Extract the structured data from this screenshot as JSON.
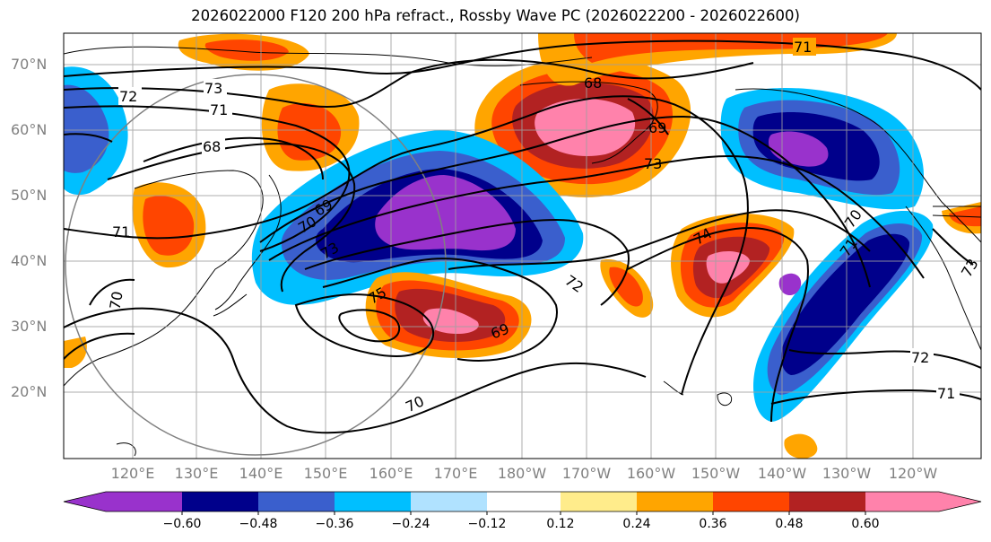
{
  "title": "2026022000 F120 200 hPa refract., Rossby Wave PC (2026022200 - 2026022600)",
  "map": {
    "lat_labels": [
      "70°N",
      "60°N",
      "50°N",
      "40°N",
      "30°N",
      "20°N"
    ],
    "lon_labels": [
      "120°E",
      "130°E",
      "140°E",
      "150°E",
      "160°E",
      "170°E",
      "180°W",
      "170°W",
      "160°W",
      "150°W",
      "140°W",
      "130°W",
      "120°W"
    ],
    "contour_labels": [
      "71",
      "73",
      "72",
      "71",
      "68",
      "69",
      "70",
      "73",
      "71",
      "70",
      "75",
      "69",
      "72",
      "68",
      "69",
      "73",
      "74",
      "70",
      "71",
      "72",
      "71",
      "73",
      "70"
    ]
  },
  "colorbar": {
    "colors": [
      "#9932cc",
      "#00008b",
      "#3a5fcd",
      "#00bfff",
      "#b0e2ff",
      "#ffffff",
      "#ffec8b",
      "#ffa500",
      "#ff4500",
      "#b22222",
      "#ff82ab"
    ],
    "tick_labels": [
      "−0.60",
      "−0.48",
      "−0.36",
      "−0.24",
      "−0.12",
      "0.12",
      "0.24",
      "0.36",
      "0.48",
      "0.60"
    ]
  }
}
